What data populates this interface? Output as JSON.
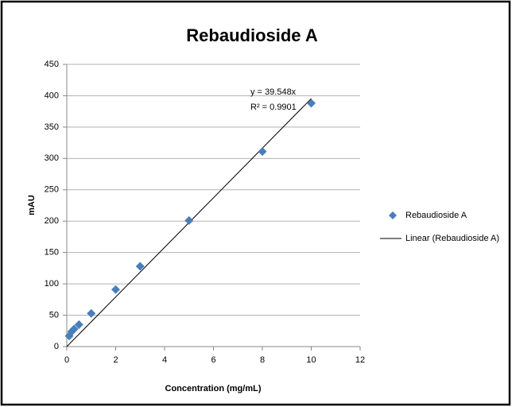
{
  "chart_data": {
    "type": "scatter",
    "title": "Rebaudioside A",
    "xlabel": "Concentration (mg/mL)",
    "ylabel": "mAU",
    "series": [
      {
        "name": "Rebaudioside A",
        "color": "#4a7ebb",
        "x": [
          0.1,
          0.2,
          0.3,
          0.5,
          1,
          2,
          3,
          5,
          8,
          10
        ],
        "values": [
          17,
          24,
          28,
          35,
          53,
          91,
          128,
          201,
          311,
          388
        ]
      }
    ],
    "trendline": {
      "name": "Linear (Rebaudioside A)",
      "slope": 39.548,
      "color": "#000000",
      "equation": "y = 39.548x",
      "r_squared": "R² = 0.9901"
    },
    "xlim": [
      0,
      12
    ],
    "xticks": [
      0,
      2,
      4,
      6,
      8,
      10,
      12
    ],
    "ylim": [
      0,
      450
    ],
    "yticks": [
      0,
      50,
      100,
      150,
      200,
      250,
      300,
      350,
      400,
      450
    ],
    "grid": true,
    "legend": "right"
  }
}
